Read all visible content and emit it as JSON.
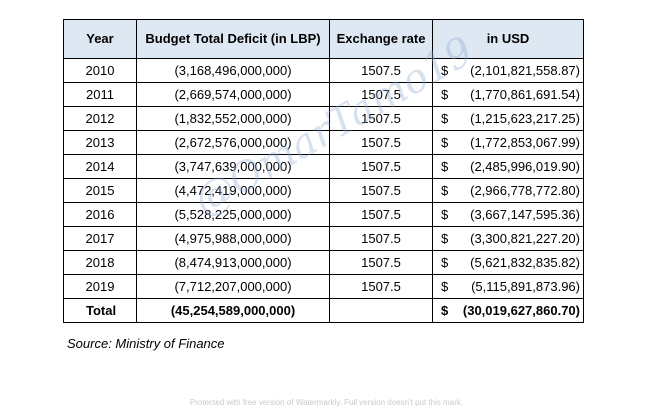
{
  "table": {
    "headers": [
      "Year",
      "Budget Total Deficit (in LBP)",
      "Exchange rate",
      "in USD"
    ],
    "rows": [
      {
        "year": "2010",
        "lbp": "(3,168,496,000,000)",
        "rate": "1507.5",
        "usd": "(2,101,821,558.87)"
      },
      {
        "year": "2011",
        "lbp": "(2,669,574,000,000)",
        "rate": "1507.5",
        "usd": "(1,770,861,691.54)"
      },
      {
        "year": "2012",
        "lbp": "(1,832,552,000,000)",
        "rate": "1507.5",
        "usd": "(1,215,623,217.25)"
      },
      {
        "year": "2013",
        "lbp": "(2,672,576,000,000)",
        "rate": "1507.5",
        "usd": "(1,772,853,067.99)"
      },
      {
        "year": "2014",
        "lbp": "(3,747,639,000,000)",
        "rate": "1507.5",
        "usd": "(2,485,996,019.90)"
      },
      {
        "year": "2015",
        "lbp": "(4,472,419,000,000)",
        "rate": "1507.5",
        "usd": "(2,966,778,772.80)"
      },
      {
        "year": "2016",
        "lbp": "(5,528,225,000,000)",
        "rate": "1507.5",
        "usd": "(3,667,147,595.36)"
      },
      {
        "year": "2017",
        "lbp": "(4,975,988,000,000)",
        "rate": "1507.5",
        "usd": "(3,300,821,227.20)"
      },
      {
        "year": "2018",
        "lbp": "(8,474,913,000,000)",
        "rate": "1507.5",
        "usd": "(5,621,832,835.82)"
      },
      {
        "year": "2019",
        "lbp": "(7,712,207,000,000)",
        "rate": "1507.5",
        "usd": "(5,115,891,873.96)"
      }
    ],
    "currency_symbol": "$",
    "total": {
      "label": "Total",
      "lbp": "(45,254,589,000,000)",
      "rate": "",
      "usd": "(30,019,627,860.70)"
    }
  },
  "source": "Source: Ministry of Finance",
  "watermark": "@OmarTamo19",
  "footer_note": "Protected with free version of Watermarkly. Full version doesn't put this mark."
}
